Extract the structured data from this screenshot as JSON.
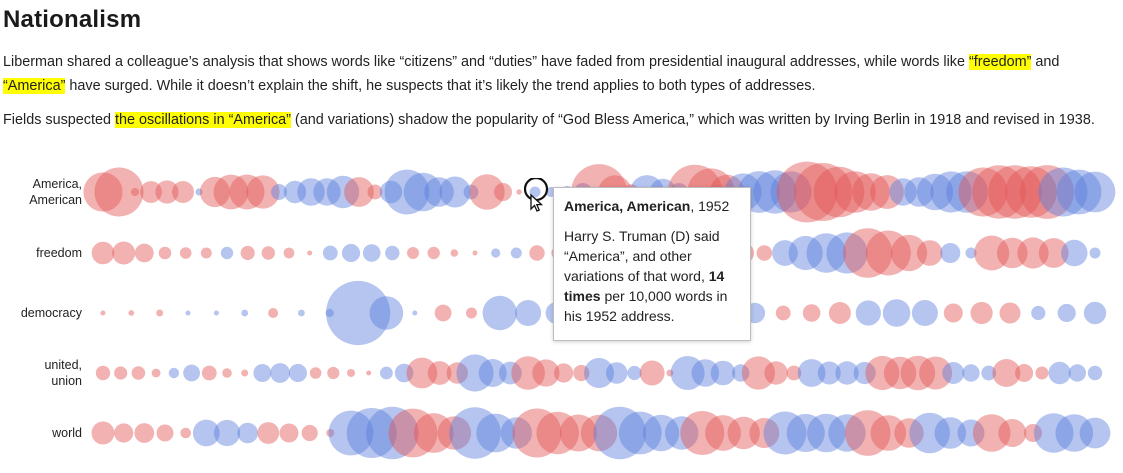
{
  "page": {
    "title": "Nationalism",
    "p1_a": "Liberman shared a colleague’s analysis that shows words like “citizens” and “duties” have faded from presidential inaugural addresses, while words like ",
    "p1_hl1": "“freedom”",
    "p1_b": " and ",
    "p1_hl2": "“America”",
    "p1_c": " have surged. While it doesn’t explain the shift, he suspects that it’s likely the trend applies to both types of addresses.",
    "p2_a": "Fields suspected ",
    "p2_hl": "the oscillations in “America”",
    "p2_b": " (and variations) shadow the popularity of “God Bless America,” which was written by Irving Berlin in 1918 and revised in 1938."
  },
  "tooltip": {
    "word": "America, American",
    "year": ", 1952",
    "body_a": "Harry S. Truman (D) said “America”, and other variations of that word, ",
    "body_bold": "14 times",
    "body_b": " per 10,000 words in his 1952 address."
  },
  "colors": {
    "democrat": "#5b7fdc",
    "republican": "#e25555",
    "highlight": "#ffff00"
  },
  "chart_data": {
    "type": "scatter",
    "x_range": [
      1789,
      2017
    ],
    "rows": [
      {
        "label_lines": [
          "America,",
          "American"
        ],
        "segments": [
          [
            1,
            "R",
            9,
            0.5
          ],
          [
            2,
            "R",
            11,
            1
          ],
          [
            3,
            "R",
            5,
            4
          ],
          [
            1,
            "D",
            1,
            2
          ],
          [
            4,
            "R",
            7,
            8
          ],
          [
            2,
            "D",
            3,
            4
          ],
          [
            3,
            "D",
            6,
            7
          ],
          [
            2,
            "R",
            6,
            3
          ],
          [
            1,
            "D",
            5,
            1
          ],
          [
            0,
            "R",
            3,
            1
          ],
          [
            3,
            "D",
            10,
            7
          ],
          [
            2,
            "D",
            7,
            2
          ],
          [
            3,
            "R",
            8,
            0
          ],
          [
            4,
            "D",
            1,
            3
          ],
          [
            3,
            "R",
            13,
            3
          ],
          [
            3,
            "D",
            7,
            4
          ],
          [
            3,
            "R",
            13,
            8
          ],
          [
            4,
            "D",
            9,
            10
          ],
          [
            6,
            "R",
            15,
            7
          ],
          [
            5,
            "D",
            6,
            10
          ],
          [
            5,
            "R",
            12,
            13
          ],
          [
            3,
            "D",
            11,
            10
          ]
        ]
      },
      {
        "label_lines": [
          "freedom"
        ],
        "segments": [
          [
            6,
            "R",
            5,
            1
          ],
          [
            1,
            "D",
            2,
            2
          ],
          [
            4,
            "R",
            3,
            0
          ],
          [
            4,
            "D",
            3,
            3
          ],
          [
            4,
            "R",
            2,
            0
          ],
          [
            2,
            "D",
            1,
            1
          ],
          [
            5,
            "R",
            3,
            1
          ],
          [
            4,
            "D",
            12,
            2
          ],
          [
            3,
            "R",
            4,
            3
          ],
          [
            4,
            "D",
            6,
            10
          ],
          [
            4,
            "R",
            12,
            6
          ],
          [
            2,
            "D",
            4,
            1
          ],
          [
            4,
            "R",
            8,
            6
          ],
          [
            2,
            "D",
            6,
            2
          ]
        ]
      },
      {
        "label_lines": [
          "democracy"
        ],
        "segments": [
          [
            3,
            "R",
            0,
            0
          ],
          [
            3,
            "D",
            0,
            0
          ],
          [
            1,
            "R",
            1,
            1
          ],
          [
            2,
            "D",
            1,
            1
          ],
          [
            3,
            "D",
            15,
            0
          ],
          [
            2,
            "R",
            3,
            1
          ],
          [
            4,
            "D",
            8,
            2
          ],
          [
            3,
            "R",
            6,
            3
          ],
          [
            3,
            "D",
            4,
            4
          ],
          [
            3,
            "R",
            2,
            5
          ],
          [
            3,
            "D",
            5,
            6
          ],
          [
            3,
            "R",
            4,
            4
          ],
          [
            3,
            "D",
            3,
            4
          ]
        ]
      },
      {
        "label_lines": [
          "united,",
          "union"
        ],
        "segments": [
          [
            4,
            "R",
            3,
            1
          ],
          [
            2,
            "D",
            2,
            3
          ],
          [
            3,
            "R",
            2,
            1
          ],
          [
            3,
            "D",
            3,
            4
          ],
          [
            4,
            "R",
            2,
            0
          ],
          [
            2,
            "D",
            2,
            3
          ],
          [
            3,
            "R",
            7,
            4
          ],
          [
            3,
            "D",
            8,
            5
          ],
          [
            4,
            "R",
            7,
            3
          ],
          [
            3,
            "D",
            6,
            3
          ],
          [
            2,
            "R",
            5,
            0
          ],
          [
            4,
            "D",
            8,
            3
          ],
          [
            3,
            "R",
            8,
            2
          ],
          [
            4,
            "D",
            6,
            4
          ],
          [
            4,
            "R",
            8,
            7
          ],
          [
            3,
            "D",
            5,
            2
          ],
          [
            3,
            "R",
            6,
            2
          ],
          [
            3,
            "D",
            4,
            3
          ]
        ]
      },
      {
        "label_lines": [
          "world"
        ],
        "segments": [
          [
            5,
            "R",
            5,
            2
          ],
          [
            3,
            "D",
            6,
            4
          ],
          [
            4,
            "R",
            5,
            1
          ],
          [
            3,
            "D",
            11,
            12
          ],
          [
            3,
            "R",
            12,
            7
          ],
          [
            3,
            "D",
            12,
            7
          ],
          [
            4,
            "R",
            11,
            8
          ],
          [
            4,
            "D",
            12,
            7
          ],
          [
            4,
            "R",
            10,
            6
          ],
          [
            4,
            "D",
            10,
            8
          ],
          [
            3,
            "R",
            11,
            6
          ],
          [
            3,
            "D",
            9,
            6
          ],
          [
            3,
            "R",
            8,
            4
          ],
          [
            3,
            "D",
            9,
            7
          ]
        ]
      }
    ],
    "selected": {
      "row": "America, American",
      "year": 1952,
      "party": "D",
      "president": "Harry S. Truman",
      "value": 14,
      "unit": "per 10,000 words"
    }
  }
}
